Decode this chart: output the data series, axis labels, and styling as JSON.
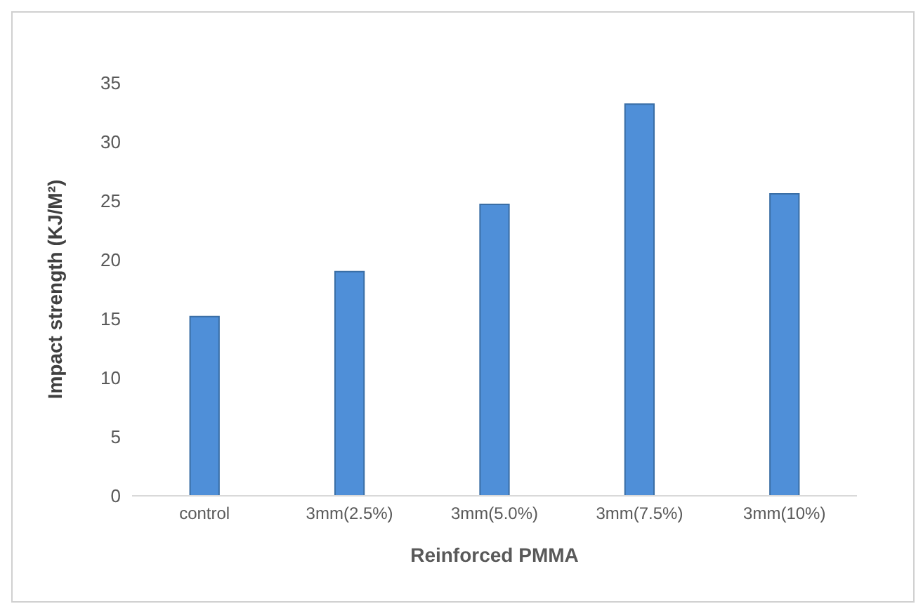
{
  "chart_data": {
    "type": "bar",
    "categories": [
      "control",
      "3mm(2.5%)",
      "3mm(5.0%)",
      "3mm(7.5%)",
      "3mm(10%)"
    ],
    "values": [
      15.2,
      19.0,
      24.7,
      33.2,
      25.6
    ],
    "color": "#4f8fd8",
    "xlabel": "Reinforced PMMA",
    "ylabel": "Impact strength (KJ/M²)",
    "ylim": [
      0,
      35
    ],
    "yticks": [
      0,
      5,
      10,
      15,
      20,
      25,
      30,
      35
    ],
    "grid": false
  }
}
